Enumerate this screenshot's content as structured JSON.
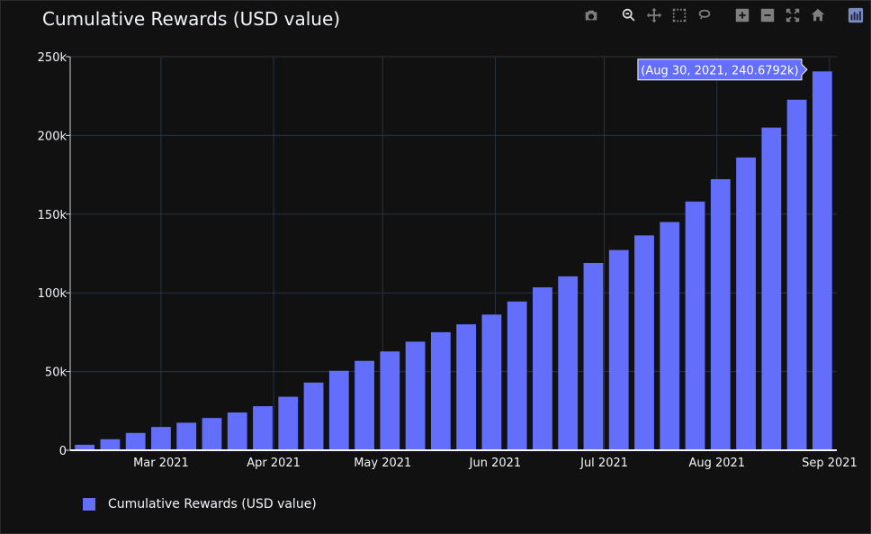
{
  "title": "Cumulative Rewards (USD value)",
  "modebar": {
    "items": [
      "camera-icon",
      "zoom-icon",
      "pan-icon",
      "box-select-icon",
      "lasso-icon",
      "zoom-in-icon",
      "zoom-out-icon",
      "autoscale-icon",
      "home-icon",
      "plotly-logo-icon"
    ],
    "active": "zoom-icon"
  },
  "colors": {
    "bar": "#636efa",
    "background": "#111111",
    "grid": "#283442",
    "text": "#f2f5fa"
  },
  "legend": {
    "label": "Cumulative Rewards (USD value)"
  },
  "tooltip": {
    "text": "(Aug 30, 2021, 240.6792k)"
  },
  "chart_data": {
    "type": "bar",
    "title": "Cumulative Rewards (USD value)",
    "x_type": "date",
    "x": [
      "2021-02-08",
      "2021-02-15",
      "2021-02-22",
      "2021-03-01",
      "2021-03-08",
      "2021-03-15",
      "2021-03-22",
      "2021-03-29",
      "2021-04-05",
      "2021-04-12",
      "2021-04-19",
      "2021-04-26",
      "2021-05-03",
      "2021-05-10",
      "2021-05-17",
      "2021-05-24",
      "2021-05-31",
      "2021-06-07",
      "2021-06-14",
      "2021-06-21",
      "2021-06-28",
      "2021-07-05",
      "2021-07-12",
      "2021-07-19",
      "2021-07-26",
      "2021-08-02",
      "2021-08-09",
      "2021-08-16",
      "2021-08-23",
      "2021-08-30"
    ],
    "series": [
      {
        "name": "Cumulative Rewards (USD value)",
        "values": [
          3500,
          7000,
          11000,
          14800,
          17500,
          20500,
          24000,
          28000,
          34000,
          43000,
          50500,
          56800,
          62800,
          69000,
          75000,
          80000,
          86200,
          94500,
          103500,
          110500,
          119000,
          127200,
          136500,
          145000,
          158000,
          172200,
          186000,
          205000,
          222700,
          240679.2
        ]
      }
    ],
    "xticks": [
      {
        "date": "2021-03-01",
        "label": "Mar 2021"
      },
      {
        "date": "2021-04-01",
        "label": "Apr 2021"
      },
      {
        "date": "2021-05-01",
        "label": "May 2021"
      },
      {
        "date": "2021-06-01",
        "label": "Jun 2021"
      },
      {
        "date": "2021-07-01",
        "label": "Jul 2021"
      },
      {
        "date": "2021-08-01",
        "label": "Aug 2021"
      },
      {
        "date": "2021-09-01",
        "label": "Sep 2021"
      }
    ],
    "yticks": [
      {
        "value": 0,
        "label": "0"
      },
      {
        "value": 50000,
        "label": "50k"
      },
      {
        "value": 100000,
        "label": "100k"
      },
      {
        "value": 150000,
        "label": "150k"
      },
      {
        "value": 200000,
        "label": "200k"
      },
      {
        "value": 250000,
        "label": "250k"
      }
    ],
    "xlim": [
      "2021-02-04",
      "2021-09-03"
    ],
    "ylim": [
      0,
      250000
    ],
    "grid": true,
    "legend_position": "bottom-left"
  }
}
